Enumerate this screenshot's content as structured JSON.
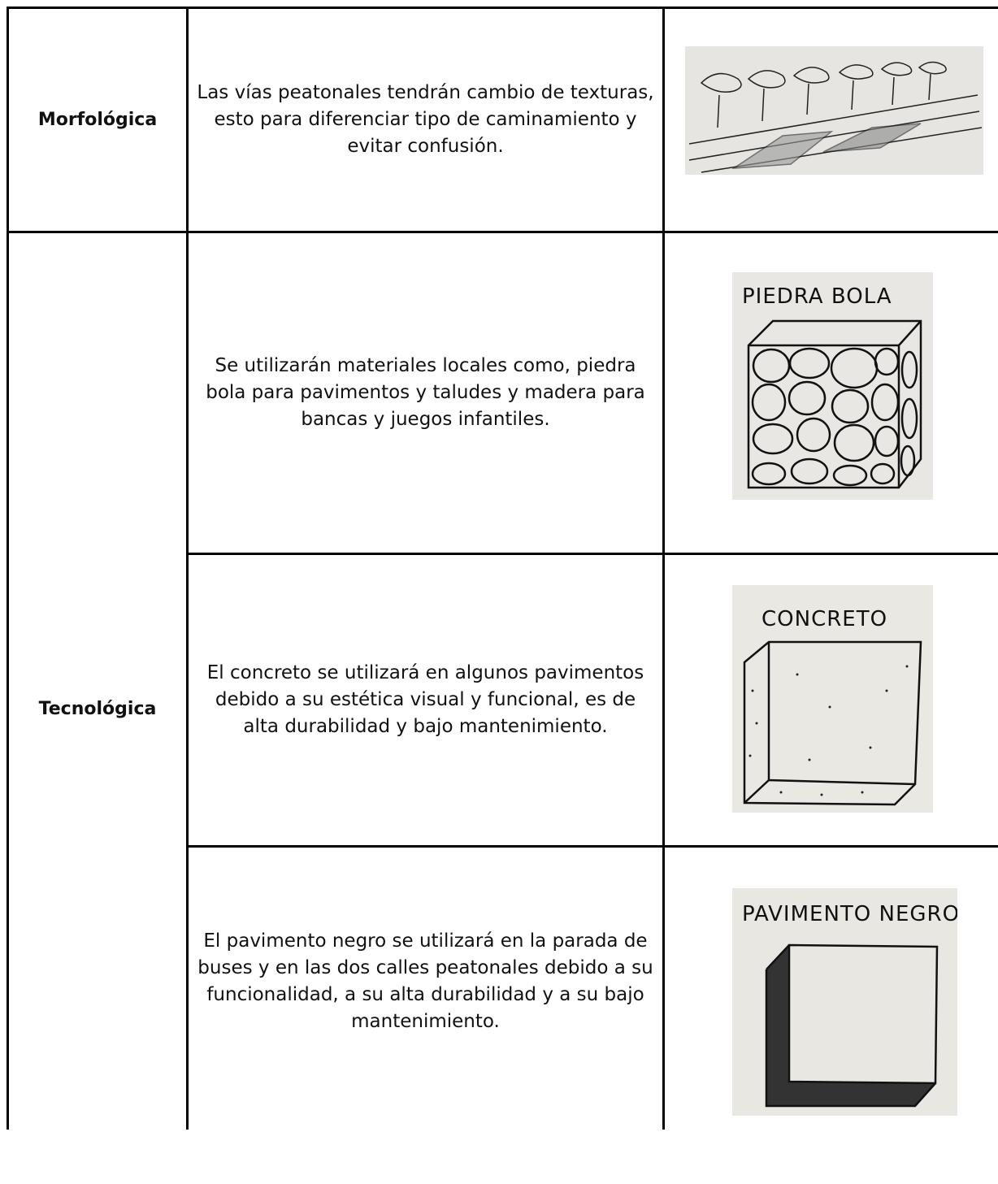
{
  "table": {
    "rows": [
      {
        "category": "Morfológica",
        "description": "Las vías peatonales tendrán cambio de texturas, esto para diferenciar tipo de caminamiento y evitar confusión."
      },
      {
        "category": "Tecnológica",
        "description": "Se utilizarán materiales locales como, piedra bola para pavimentos y taludes y madera para bancas y juegos infantiles.",
        "image_label": "PIEDRA BOLA"
      },
      {
        "description": "El concreto se utilizará en algunos pavimentos debido a su estética visual y funcional, es de alta durabilidad y bajo mantenimiento.",
        "image_label": "CONCRETO"
      },
      {
        "description": "El pavimento negro se utilizará en la parada de buses y en las dos calles peatonales debido a su funcionalidad, a su alta durabilidad y a su bajo mantenimiento.",
        "image_label": "PAVIMENTO NEGRO"
      }
    ]
  }
}
